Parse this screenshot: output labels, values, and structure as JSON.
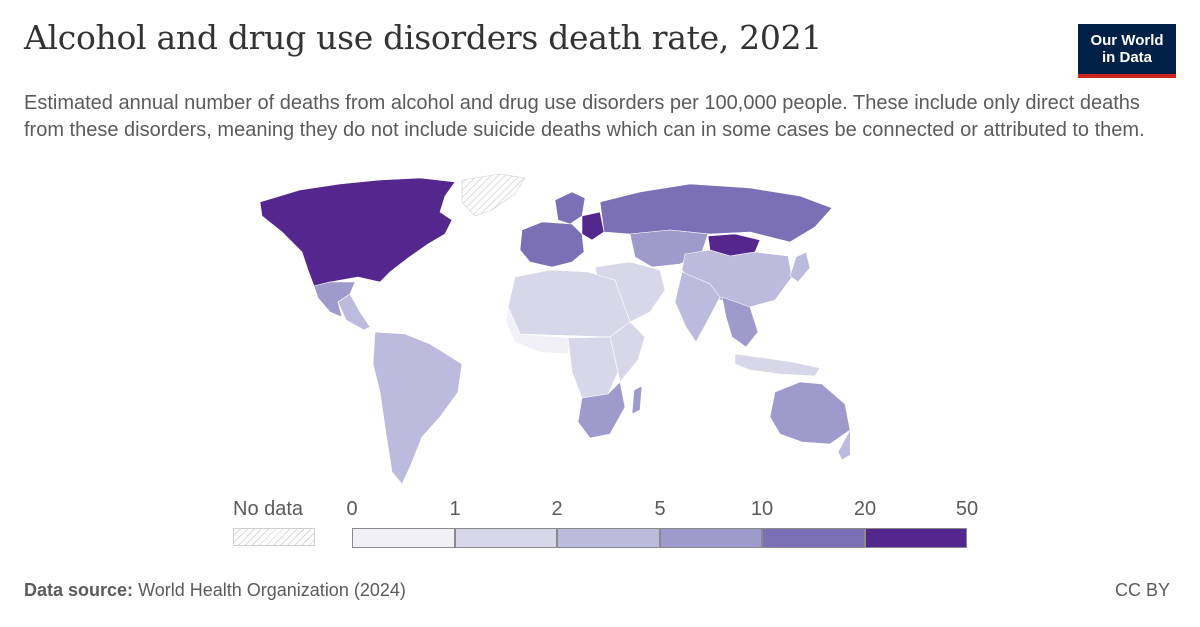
{
  "header": {
    "title": "Alcohol and drug use disorders death rate, 2021",
    "subtitle": "Estimated annual number of deaths from alcohol and drug use disorders per 100,000 people. These include only direct deaths from these disorders, meaning they do not include suicide deaths which can in some cases be connected or attributed to them.",
    "logo_line1": "Our World",
    "logo_line2": "in Data"
  },
  "legend": {
    "no_data_label": "No data",
    "ticks": [
      "0",
      "1",
      "2",
      "5",
      "10",
      "20",
      "50"
    ],
    "colors": [
      "#f1f0f7",
      "#d8d7e9",
      "#bcbbdd",
      "#9e9acb",
      "#7b6fb5",
      "#54278f"
    ]
  },
  "map_regions": {
    "north_america": "#54278f",
    "greenland": "nodata",
    "mexico": "#9e9acb",
    "central_america": "#bcbbdd",
    "south_america": "#bcbbdd",
    "europe": "#7b6fb5",
    "scandinavia": "#7b6fb5",
    "eastern_europe": "#54278f",
    "russia": "#7b6fb5",
    "central_asia": "#9e9acb",
    "mongolia": "#54278f",
    "china": "#bcbbdd",
    "india": "#bcbbdd",
    "southeast_asia": "#9e9acb",
    "middle_east": "#d8d7e9",
    "north_africa": "#d8d7e9",
    "west_africa": "#f1f0f7",
    "central_africa": "#d8d7e9",
    "east_africa": "#d8d7e9",
    "southern_africa": "#9e9acb",
    "madagascar": "#9e9acb",
    "australia": "#9e9acb",
    "new_zealand": "#bcbbdd",
    "japan": "#bcbbdd",
    "indonesia": "#d8d7e9"
  },
  "footer": {
    "source_label": "Data source:",
    "source_text": "World Health Organization (2024)",
    "license": "CC BY"
  }
}
